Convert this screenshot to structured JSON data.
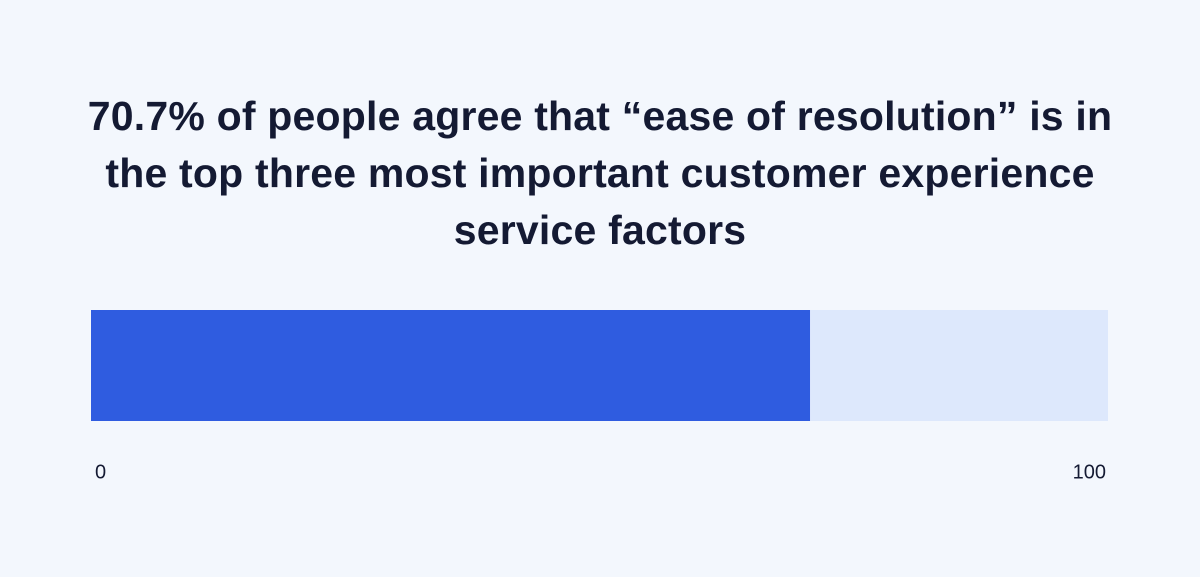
{
  "chart_data": {
    "type": "progress",
    "orientation": "horizontal",
    "title": "70.7% of people agree that “ease of resolution” is in the top three most important customer experience service factors",
    "values": [
      70.7
    ],
    "color": "#2f5ce0",
    "track_color": "#dde8fc",
    "xlim": [
      0,
      100
    ],
    "xticks": [
      0,
      100
    ],
    "grid": false
  }
}
